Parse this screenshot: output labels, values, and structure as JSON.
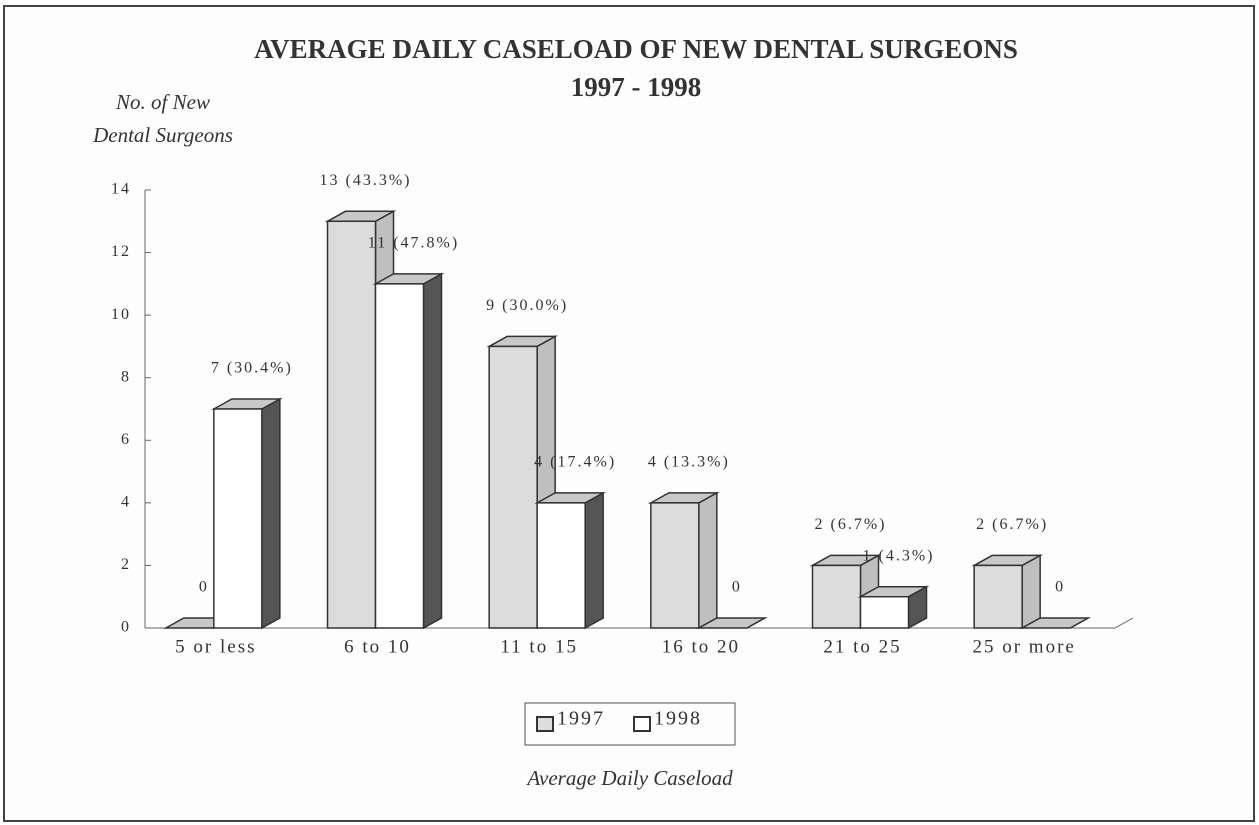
{
  "chart_data": {
    "type": "bar3d",
    "title": "AVERAGE DAILY CASELOAD OF NEW DENTAL SURGEONS",
    "subtitle": "1997 - 1998",
    "y_label": [
      "No. of New",
      "Dental Surgeons"
    ],
    "x_label": "Average Daily Caseload",
    "categories": [
      "5 or less",
      "6 to 10",
      "11 to 15",
      "16 to 20",
      "21 to 25",
      "25 or more"
    ],
    "series": [
      {
        "name": "1997",
        "color": "#dcdcdc",
        "values": [
          0,
          13,
          9,
          4,
          2,
          2
        ],
        "value_labels": [
          "0",
          "13 (43.3%)",
          "9 (30.0%)",
          "4 (13.3%)",
          "2 (6.7%)",
          "2 (6.7%)"
        ]
      },
      {
        "name": "1998",
        "color": "#ffffff",
        "values": [
          7,
          11,
          4,
          0,
          1,
          0
        ],
        "value_labels": [
          "7 (30.4%)",
          "11 (47.8%)",
          "4 (17.4%)",
          "0",
          "1 (4.3%)",
          "0"
        ]
      }
    ],
    "ylim": [
      0,
      14
    ],
    "yticks": [
      0,
      2,
      4,
      6,
      8,
      10,
      12,
      14
    ],
    "grid": false
  }
}
